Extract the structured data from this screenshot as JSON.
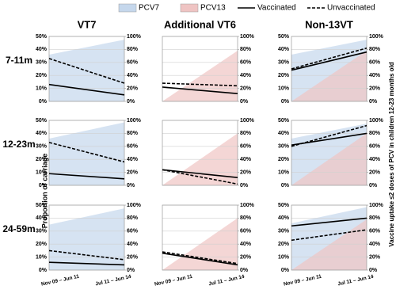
{
  "chart_data": {
    "type": "line",
    "legend": [
      {
        "name": "PCV7",
        "color": "#c5d7ec",
        "kind": "area"
      },
      {
        "name": "PCV13",
        "color": "#efc4c3",
        "kind": "area"
      },
      {
        "name": "Vaccinated",
        "color": "#000000",
        "kind": "solid"
      },
      {
        "name": "Unvaccinated",
        "color": "#000000",
        "kind": "dashed"
      }
    ],
    "columns": [
      "VT7",
      "Additional VT6",
      "Non-13VT"
    ],
    "rows": [
      "7-11m",
      "12-23m",
      "24-59m"
    ],
    "ylabel": "Proportion of carriage",
    "y2label": "Vaccine uptake ≤2 doses of PCV in children 12-23 months old",
    "x": [
      "Nov 09 – Jun 11",
      "Jul 11 – Jun 14"
    ],
    "ylim": [
      0,
      50
    ],
    "yticks": [
      {
        "value": 0,
        "label": "0%"
      },
      {
        "value": 10,
        "label": "10%"
      },
      {
        "value": 20,
        "label": "20%"
      },
      {
        "value": 30,
        "label": "30%"
      },
      {
        "value": 40,
        "label": "40%"
      },
      {
        "value": 50,
        "label": "50%"
      }
    ],
    "y2lim": [
      0,
      100
    ],
    "y2ticks": [
      {
        "value": 0,
        "label": "0%"
      },
      {
        "value": 20,
        "label": "20%"
      },
      {
        "value": 40,
        "label": "40%"
      },
      {
        "value": 60,
        "label": "60%"
      },
      {
        "value": 80,
        "label": "80%"
      },
      {
        "value": 100,
        "label": "100%"
      }
    ],
    "grid": true,
    "panels": [
      {
        "pcv7": [
          72,
          95
        ],
        "vaccinated": [
          13,
          5
        ],
        "unvaccinated": [
          33,
          14
        ]
      },
      {
        "pcv13": [
          0,
          78
        ],
        "vaccinated": [
          11,
          6
        ],
        "unvaccinated": [
          14,
          12
        ]
      },
      {
        "pcv7": [
          72,
          95
        ],
        "pcv13": [
          0,
          78
        ],
        "vaccinated": [
          24,
          38
        ],
        "unvaccinated": [
          25,
          41
        ]
      },
      {
        "pcv7": [
          72,
          97
        ],
        "vaccinated": [
          9,
          5
        ],
        "unvaccinated": [
          33,
          18
        ]
      },
      {
        "pcv13": [
          0,
          80
        ],
        "vaccinated": [
          12,
          6
        ],
        "unvaccinated": [
          12,
          1
        ]
      },
      {
        "pcv7": [
          72,
          95
        ],
        "pcv13": [
          0,
          80
        ],
        "vaccinated": [
          31,
          40
        ],
        "unvaccinated": [
          30,
          46
        ]
      },
      {
        "pcv7": [
          70,
          95
        ],
        "vaccinated": [
          6,
          4
        ],
        "unvaccinated": [
          15,
          8
        ]
      },
      {
        "pcv13": [
          0,
          80
        ],
        "vaccinated": [
          13,
          4
        ],
        "unvaccinated": [
          14,
          5
        ]
      },
      {
        "pcv7": [
          72,
          97
        ],
        "pcv13": [
          0,
          78
        ],
        "vaccinated": [
          34,
          40
        ],
        "unvaccinated": [
          23,
          31
        ]
      }
    ]
  }
}
